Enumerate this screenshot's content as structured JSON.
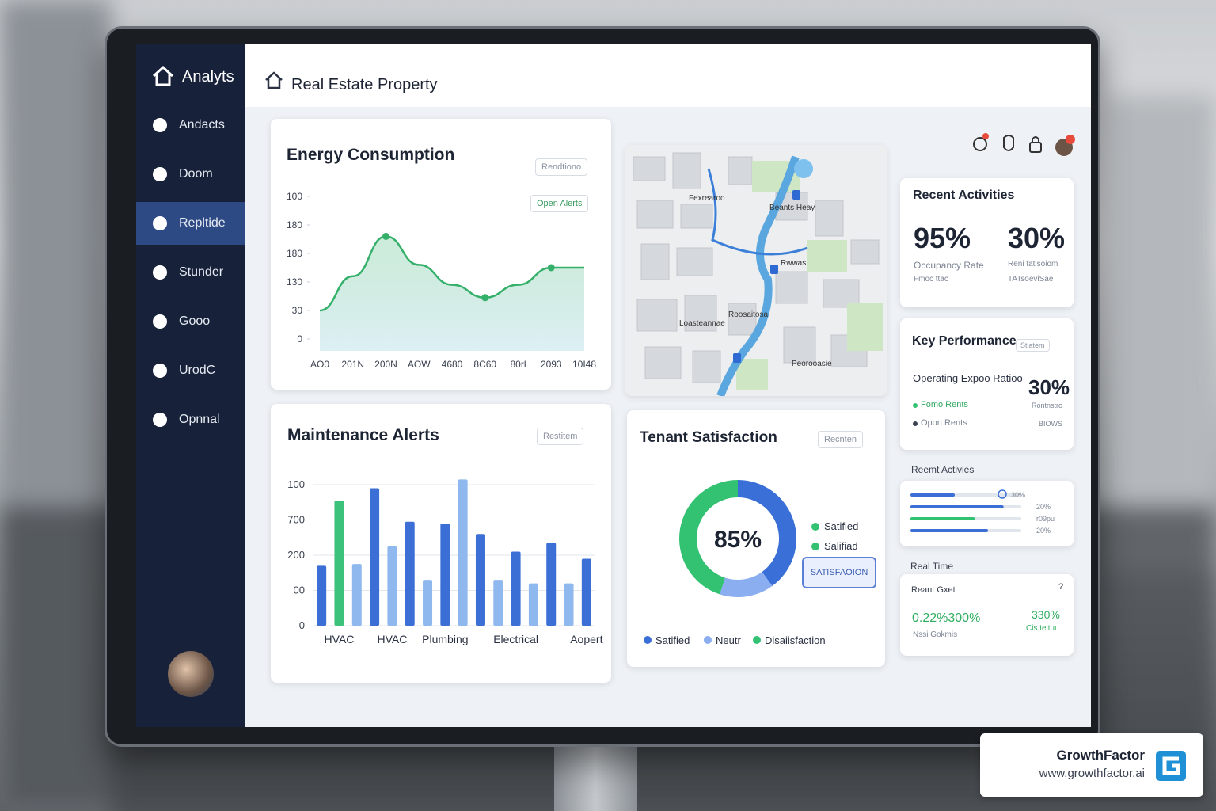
{
  "sidebar": {
    "brand": "Analyts",
    "items": [
      "Andacts",
      "Doom",
      "Repltide",
      "Stunder",
      "Gooo",
      "UrodC",
      "Opnnal"
    ],
    "active": 2
  },
  "header": {
    "title": "Real Estate Property"
  },
  "energy": {
    "type": "line",
    "title": "Energy Consumption",
    "button": "Rendtiono",
    "alert_button": "Open Alerts",
    "categories": [
      "AO0",
      "201N",
      "200N",
      "AOW",
      "4680",
      "8C60",
      "80rl",
      "2093",
      "10I48"
    ],
    "values": [
      1.0,
      2.2,
      3.6,
      2.6,
      1.9,
      1.45,
      1.9,
      2.5,
      2.5
    ],
    "markers": [
      2,
      5,
      7
    ],
    "color": "#34b06a",
    "ylim": [
      0,
      5
    ],
    "yticks": [
      0,
      {
        "value": 1,
        "label": "30"
      },
      {
        "value": 2,
        "label": "130"
      },
      {
        "value": 3,
        "label": "180"
      },
      {
        "value": 4,
        "label": "180"
      },
      {
        "value": 5,
        "label": "100"
      }
    ]
  },
  "maintenance": {
    "type": "bar",
    "title": "Maintenance Alerts",
    "button": "Restitem",
    "categories": [
      null,
      "HVAC",
      null,
      null,
      "HVAC",
      null,
      null,
      "Plumbing",
      null,
      null,
      null,
      "Electrical",
      null,
      null,
      null,
      "Aopert"
    ],
    "values": [
      1.7,
      3.55,
      1.75,
      3.9,
      2.25,
      2.95,
      1.3,
      2.9,
      4.15,
      2.6,
      1.3,
      2.1,
      1.2,
      2.35,
      1.2,
      1.9
    ],
    "colors": [
      "#3b6fd6",
      "#3cc27a",
      "#8fb8ee",
      "#3b6fd6",
      "#8fb8ee",
      "#3b6fd6",
      "#8fb8ee",
      "#3b6fd6",
      "#8fb8ee",
      "#3b6fd6",
      "#8fb8ee",
      "#3b6fd6",
      "#8fb8ee",
      "#3b6fd6",
      "#8fb8ee",
      "#3b6fd6"
    ],
    "ylim": [
      0,
      4
    ],
    "yticks": [
      0,
      {
        "value": 1,
        "label": "00"
      },
      {
        "value": 2,
        "label": "200"
      },
      {
        "value": 3,
        "label": "700"
      },
      {
        "value": 4,
        "label": "100"
      }
    ],
    "grid": true
  },
  "tenant": {
    "type": "donut",
    "title": "Tenant Satisfaction",
    "button": "Recnten",
    "center_label": "85%",
    "values": [
      40,
      15,
      45
    ],
    "colors": [
      "#3a6fd8",
      "#8aaef0",
      "#33c172"
    ],
    "legend": [
      "Satified",
      "Neutr",
      "Disaiisfaction"
    ],
    "side_legend": [
      "Satified",
      "Salifiad"
    ],
    "side_button": "SATISFAOION"
  },
  "map": {
    "labels": [
      "Fexrearoo",
      "Beants Heay",
      "Rwwas",
      "Roosaitosa",
      "Loasteannae",
      "Peorooasie"
    ]
  },
  "recent": {
    "title": "Recent Activities",
    "stats": [
      {
        "value": "95%",
        "label": "Occupancy Rate",
        "sub": "Fmoc ttac"
      },
      {
        "value": "30%",
        "label": "Reni fatisoiom",
        "sub": "TATsoeviSae"
      }
    ]
  },
  "kpi": {
    "title": "Key Performance",
    "button": "Stiatem",
    "metric": "Operating Expoo Ratioo",
    "metric_value": "30%",
    "rows": [
      {
        "label": "Fomo Rents",
        "value": "Rontnstro"
      },
      {
        "label": "Opon Rents",
        "value": "BIOWS"
      }
    ]
  },
  "progress": {
    "title": "Reemt Activies",
    "values": [
      40,
      84,
      58,
      70
    ],
    "colors": [
      "#3b6fd6",
      "#3b6fd6",
      "#33c172",
      "#3b6fd6"
    ],
    "labels": [
      "30%",
      "20%",
      "r09pu",
      "20%"
    ]
  },
  "realtime": {
    "title": "Real Time",
    "card_title": "Reant Gxet",
    "help": "?",
    "left_value": "0.22%300%",
    "left_label": "Nssi Gokmis",
    "right_value": "330%",
    "right_label": "Cis.teituu"
  },
  "watermark": {
    "brand": "GrowthFactor",
    "url": "www.growthfactor.ai"
  }
}
